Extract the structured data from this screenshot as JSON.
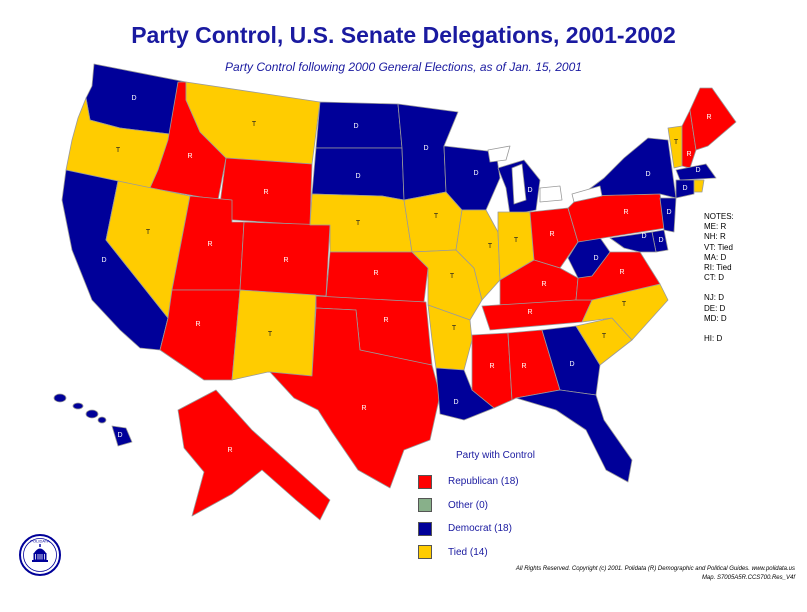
{
  "title": "Party Control, U.S. Senate Delegations, 2001-2002",
  "subtitle": "Party Control following 2000 General Elections, as of Jan. 15, 2001",
  "colors": {
    "R": "#ff0000",
    "D": "#000099",
    "T": "#ffcc00",
    "O": "#88b08a",
    "border": "#9a9a9a"
  },
  "states": [
    {
      "abbr": "WA",
      "party": "D",
      "label": "D"
    },
    {
      "abbr": "OR",
      "party": "T",
      "label": "T"
    },
    {
      "abbr": "CA",
      "party": "D",
      "label": "D"
    },
    {
      "abbr": "ID",
      "party": "R",
      "label": "R"
    },
    {
      "abbr": "NV",
      "party": "T",
      "label": "T"
    },
    {
      "abbr": "MT",
      "party": "T",
      "label": "T"
    },
    {
      "abbr": "WY",
      "party": "R",
      "label": "R"
    },
    {
      "abbr": "UT",
      "party": "R",
      "label": "R"
    },
    {
      "abbr": "AZ",
      "party": "R",
      "label": "R"
    },
    {
      "abbr": "CO",
      "party": "R",
      "label": "R"
    },
    {
      "abbr": "NM",
      "party": "T",
      "label": "T"
    },
    {
      "abbr": "ND",
      "party": "D",
      "label": "D"
    },
    {
      "abbr": "SD",
      "party": "D",
      "label": "D"
    },
    {
      "abbr": "NE",
      "party": "T",
      "label": "T"
    },
    {
      "abbr": "KS",
      "party": "R",
      "label": "R"
    },
    {
      "abbr": "OK",
      "party": "R",
      "label": "R"
    },
    {
      "abbr": "TX",
      "party": "R",
      "label": "R"
    },
    {
      "abbr": "MN",
      "party": "D",
      "label": "D"
    },
    {
      "abbr": "IA",
      "party": "T",
      "label": "T"
    },
    {
      "abbr": "MO",
      "party": "T",
      "label": "T"
    },
    {
      "abbr": "AR",
      "party": "T",
      "label": "T"
    },
    {
      "abbr": "LA",
      "party": "D",
      "label": "D"
    },
    {
      "abbr": "WI",
      "party": "D",
      "label": "D"
    },
    {
      "abbr": "IL",
      "party": "T",
      "label": "T"
    },
    {
      "abbr": "MI",
      "party": "D",
      "label": "D"
    },
    {
      "abbr": "IN",
      "party": "T",
      "label": "T"
    },
    {
      "abbr": "OH",
      "party": "R",
      "label": "R"
    },
    {
      "abbr": "KY",
      "party": "R",
      "label": "R"
    },
    {
      "abbr": "TN",
      "party": "R",
      "label": "R"
    },
    {
      "abbr": "MS",
      "party": "R",
      "label": "R"
    },
    {
      "abbr": "AL",
      "party": "R",
      "label": "R"
    },
    {
      "abbr": "GA",
      "party": "D",
      "label": "D"
    },
    {
      "abbr": "FL",
      "party": "D",
      "label": "D"
    },
    {
      "abbr": "SC",
      "party": "T",
      "label": "T"
    },
    {
      "abbr": "NC",
      "party": "T",
      "label": "T"
    },
    {
      "abbr": "VA",
      "party": "R",
      "label": "R"
    },
    {
      "abbr": "WV",
      "party": "D",
      "label": "D"
    },
    {
      "abbr": "PA",
      "party": "R",
      "label": "R"
    },
    {
      "abbr": "NY",
      "party": "D",
      "label": "D"
    },
    {
      "abbr": "VT",
      "party": "T",
      "label": "T"
    },
    {
      "abbr": "NH",
      "party": "R",
      "label": "R"
    },
    {
      "abbr": "ME",
      "party": "R",
      "label": "R"
    },
    {
      "abbr": "MA",
      "party": "D",
      "label": "D"
    },
    {
      "abbr": "RI",
      "party": "T",
      "label": ""
    },
    {
      "abbr": "CT",
      "party": "D",
      "label": "D"
    },
    {
      "abbr": "NJ",
      "party": "D",
      "label": "D"
    },
    {
      "abbr": "DE",
      "party": "D",
      "label": "D"
    },
    {
      "abbr": "MD",
      "party": "D",
      "label": "D"
    },
    {
      "abbr": "AK",
      "party": "R",
      "label": "R"
    },
    {
      "abbr": "HI",
      "party": "D",
      "label": "D"
    }
  ],
  "notes": {
    "header": "NOTES:",
    "group1": [
      "ME: R",
      "NH: R",
      "VT: Tied",
      "MA: D",
      "RI: Tied",
      "CT: D"
    ],
    "group2": [
      "NJ: D",
      "DE: D",
      "MD: D"
    ],
    "group3": [
      "HI: D"
    ]
  },
  "legend": {
    "title": "Party with Control",
    "items": [
      {
        "label": "Republican (18)",
        "color": "#ff0000"
      },
      {
        "label": "Other (0)",
        "color": "#88b08a"
      },
      {
        "label": "Democrat (18)",
        "color": "#000099"
      },
      {
        "label": "Tied (14)",
        "color": "#ffcc00"
      }
    ]
  },
  "copyright": {
    "line1": "All Rights Reserved. Copyright (c) 2001. Polidata (R) Demographic and Political Guides. www.polidata.us",
    "line2": "Map. S7005A5R.CCS700.Res_V4f"
  },
  "logo": {
    "text": "POLIDATA"
  }
}
